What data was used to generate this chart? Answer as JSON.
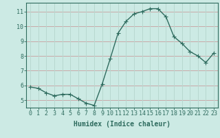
{
  "x": [
    0,
    1,
    2,
    3,
    4,
    5,
    6,
    7,
    8,
    9,
    10,
    11,
    12,
    13,
    14,
    15,
    16,
    17,
    18,
    19,
    20,
    21,
    22,
    23
  ],
  "y": [
    5.9,
    5.8,
    5.5,
    5.3,
    5.4,
    5.4,
    5.1,
    4.8,
    4.65,
    6.1,
    7.8,
    9.55,
    10.35,
    10.85,
    11.0,
    11.2,
    11.2,
    10.65,
    9.3,
    8.85,
    8.3,
    8.0,
    7.55,
    8.2
  ],
  "line_color": "#2e6b5e",
  "marker": "+",
  "marker_size": 4,
  "bg_color": "#cceae4",
  "grid_color_h": "#c8a8a8",
  "grid_color_v": "#b8d8d0",
  "xlabel": "Humidex (Indice chaleur)",
  "xlim": [
    -0.5,
    23.5
  ],
  "ylim": [
    4.5,
    11.6
  ],
  "yticks": [
    5,
    6,
    7,
    8,
    9,
    10,
    11
  ],
  "xticks": [
    0,
    1,
    2,
    3,
    4,
    5,
    6,
    7,
    8,
    9,
    10,
    11,
    12,
    13,
    14,
    15,
    16,
    17,
    18,
    19,
    20,
    21,
    22,
    23
  ],
  "tick_color": "#2e6b5e",
  "label_fontsize": 6,
  "xlabel_fontsize": 7,
  "axis_color": "#2e6b5e",
  "linewidth": 1.0,
  "markeredgewidth": 0.8
}
